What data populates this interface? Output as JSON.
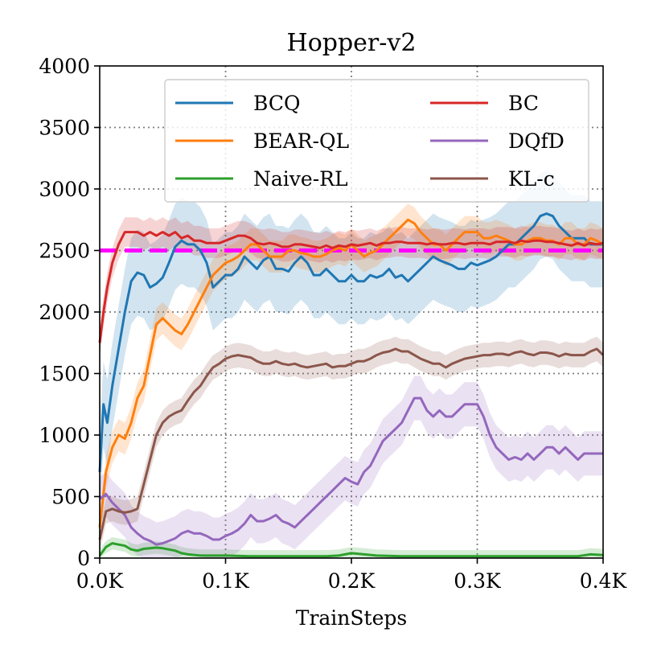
{
  "chart_data": {
    "type": "line",
    "title": "Hopper-v2",
    "xlabel": "TrainSteps",
    "ylabel": "",
    "xlim": [
      0,
      400
    ],
    "ylim": [
      0,
      4000
    ],
    "x_ticks": [
      0,
      100,
      200,
      300,
      400
    ],
    "x_tick_labels": [
      "0.0K",
      "0.1K",
      "0.2K",
      "0.3K",
      "0.4K"
    ],
    "y_ticks": [
      0,
      500,
      1000,
      1500,
      2000,
      2500,
      3000,
      3500,
      4000
    ],
    "y_tick_labels": [
      "0",
      "500",
      "1000",
      "1500",
      "2000",
      "2500",
      "3000",
      "3500",
      "4000"
    ],
    "grid": true,
    "legend_position": "top-right",
    "reference_line": {
      "y": 2500,
      "color": "#ff00ff",
      "style": "dashed"
    },
    "series": [
      {
        "name": "BCQ",
        "color": "#1f77b4",
        "x": [
          0,
          3,
          6,
          10,
          15,
          20,
          25,
          30,
          35,
          40,
          45,
          50,
          55,
          60,
          65,
          70,
          75,
          80,
          85,
          90,
          95,
          100,
          105,
          110,
          115,
          120,
          125,
          130,
          135,
          140,
          145,
          150,
          155,
          160,
          165,
          170,
          175,
          180,
          185,
          190,
          195,
          200,
          205,
          210,
          215,
          220,
          225,
          230,
          235,
          240,
          245,
          250,
          255,
          260,
          265,
          270,
          275,
          280,
          285,
          290,
          295,
          300,
          305,
          310,
          315,
          320,
          325,
          330,
          335,
          340,
          345,
          350,
          355,
          360,
          365,
          370,
          375,
          380,
          385,
          390,
          395,
          400
        ],
        "values": [
          700,
          1250,
          1100,
          1400,
          1700,
          2000,
          2250,
          2320,
          2300,
          2200,
          2230,
          2280,
          2400,
          2530,
          2580,
          2550,
          2550,
          2500,
          2400,
          2200,
          2250,
          2300,
          2300,
          2350,
          2450,
          2400,
          2350,
          2420,
          2450,
          2350,
          2350,
          2330,
          2400,
          2450,
          2400,
          2300,
          2300,
          2350,
          2300,
          2250,
          2250,
          2300,
          2250,
          2250,
          2300,
          2280,
          2300,
          2350,
          2280,
          2300,
          2250,
          2300,
          2350,
          2400,
          2450,
          2420,
          2400,
          2380,
          2350,
          2350,
          2400,
          2380,
          2400,
          2420,
          2450,
          2500,
          2550,
          2550,
          2600,
          2650,
          2700,
          2780,
          2800,
          2780,
          2700,
          2650,
          2600,
          2600,
          2600,
          2550,
          2550,
          2550
        ],
        "band": 350
      },
      {
        "name": "BEAR-QL",
        "color": "#ff7f0e",
        "x": [
          0,
          5,
          10,
          15,
          20,
          25,
          30,
          35,
          40,
          45,
          50,
          55,
          60,
          65,
          70,
          75,
          80,
          85,
          90,
          95,
          100,
          105,
          110,
          115,
          120,
          125,
          130,
          135,
          140,
          145,
          150,
          155,
          160,
          165,
          170,
          175,
          180,
          185,
          190,
          195,
          200,
          205,
          210,
          215,
          220,
          225,
          230,
          235,
          240,
          245,
          250,
          255,
          260,
          265,
          270,
          275,
          280,
          285,
          290,
          295,
          300,
          305,
          310,
          315,
          320,
          325,
          330,
          335,
          340,
          345,
          350,
          355,
          360,
          365,
          370,
          375,
          380,
          385,
          390,
          395,
          400
        ],
        "values": [
          250,
          700,
          900,
          1000,
          970,
          1100,
          1300,
          1400,
          1650,
          1900,
          1950,
          1900,
          1850,
          1820,
          1900,
          2000,
          2100,
          2200,
          2300,
          2350,
          2400,
          2420,
          2450,
          2500,
          2550,
          2550,
          2500,
          2450,
          2450,
          2450,
          2500,
          2500,
          2480,
          2470,
          2450,
          2450,
          2470,
          2500,
          2520,
          2500,
          2550,
          2500,
          2450,
          2480,
          2500,
          2550,
          2600,
          2650,
          2700,
          2750,
          2720,
          2650,
          2600,
          2550,
          2550,
          2500,
          2550,
          2600,
          2650,
          2650,
          2650,
          2600,
          2600,
          2620,
          2600,
          2580,
          2550,
          2550,
          2580,
          2600,
          2600,
          2580,
          2580,
          2550,
          2600,
          2600,
          2550,
          2550,
          2600,
          2580,
          2550
        ],
        "band": 130
      },
      {
        "name": "Naive-RL",
        "color": "#2ca02c",
        "x": [
          0,
          5,
          10,
          15,
          20,
          25,
          30,
          35,
          40,
          45,
          50,
          55,
          60,
          65,
          70,
          80,
          90,
          100,
          120,
          140,
          160,
          180,
          190,
          200,
          210,
          220,
          240,
          260,
          280,
          300,
          320,
          340,
          360,
          380,
          390,
          400
        ],
        "values": [
          20,
          90,
          120,
          110,
          100,
          70,
          60,
          75,
          80,
          85,
          80,
          70,
          60,
          40,
          30,
          20,
          20,
          20,
          15,
          15,
          15,
          15,
          20,
          40,
          30,
          20,
          15,
          15,
          15,
          15,
          15,
          15,
          15,
          15,
          30,
          25
        ],
        "band": 50
      },
      {
        "name": "BC",
        "color": "#d62728",
        "x": [
          0,
          3,
          6,
          10,
          15,
          20,
          25,
          30,
          35,
          40,
          45,
          50,
          55,
          60,
          65,
          70,
          75,
          80,
          85,
          90,
          95,
          100,
          105,
          110,
          115,
          120,
          125,
          130,
          135,
          140,
          145,
          150,
          155,
          160,
          165,
          170,
          175,
          180,
          185,
          190,
          195,
          200,
          205,
          210,
          215,
          220,
          225,
          230,
          235,
          240,
          245,
          250,
          255,
          260,
          265,
          270,
          275,
          280,
          285,
          290,
          295,
          300,
          305,
          310,
          315,
          320,
          325,
          330,
          335,
          340,
          345,
          350,
          355,
          360,
          365,
          370,
          375,
          380,
          385,
          390,
          395,
          400
        ],
        "values": [
          1750,
          2000,
          2200,
          2400,
          2550,
          2650,
          2650,
          2650,
          2620,
          2650,
          2620,
          2650,
          2620,
          2650,
          2600,
          2620,
          2580,
          2580,
          2560,
          2560,
          2560,
          2580,
          2600,
          2620,
          2620,
          2600,
          2560,
          2550,
          2560,
          2550,
          2530,
          2530,
          2550,
          2550,
          2540,
          2530,
          2520,
          2540,
          2520,
          2540,
          2530,
          2550,
          2540,
          2550,
          2560,
          2540,
          2560,
          2560,
          2570,
          2570,
          2560,
          2560,
          2560,
          2550,
          2560,
          2550,
          2550,
          2560,
          2560,
          2550,
          2560,
          2560,
          2560,
          2550,
          2570,
          2570,
          2570,
          2560,
          2580,
          2570,
          2580,
          2580,
          2570,
          2570,
          2560,
          2550,
          2540,
          2560,
          2540,
          2560,
          2550,
          2560
        ],
        "band": 120
      },
      {
        "name": "DQfD",
        "color": "#9467bd",
        "x": [
          0,
          5,
          10,
          15,
          20,
          25,
          30,
          35,
          40,
          45,
          50,
          55,
          60,
          65,
          70,
          75,
          80,
          85,
          90,
          95,
          100,
          105,
          110,
          115,
          120,
          125,
          130,
          135,
          140,
          145,
          150,
          155,
          160,
          165,
          170,
          175,
          180,
          185,
          190,
          195,
          200,
          205,
          210,
          215,
          220,
          225,
          230,
          235,
          240,
          245,
          250,
          255,
          260,
          265,
          270,
          275,
          280,
          285,
          290,
          295,
          300,
          305,
          310,
          315,
          320,
          325,
          330,
          335,
          340,
          345,
          350,
          355,
          360,
          365,
          370,
          375,
          380,
          385,
          390,
          395,
          400
        ],
        "values": [
          480,
          520,
          450,
          400,
          350,
          250,
          200,
          160,
          140,
          110,
          120,
          140,
          160,
          200,
          220,
          200,
          200,
          180,
          150,
          150,
          180,
          200,
          230,
          280,
          350,
          300,
          300,
          320,
          350,
          300,
          280,
          250,
          300,
          350,
          400,
          450,
          500,
          550,
          600,
          650,
          620,
          600,
          700,
          750,
          850,
          950,
          1000,
          1050,
          1100,
          1200,
          1300,
          1300,
          1200,
          1150,
          1200,
          1150,
          1150,
          1200,
          1250,
          1250,
          1250,
          1150,
          1000,
          900,
          850,
          800,
          820,
          800,
          850,
          800,
          850,
          900,
          900,
          850,
          900,
          850,
          800,
          850,
          850,
          850,
          850
        ],
        "band": 180
      },
      {
        "name": "KL-c",
        "color": "#8c564b",
        "x": [
          0,
          5,
          10,
          15,
          20,
          25,
          30,
          35,
          40,
          45,
          50,
          55,
          60,
          65,
          70,
          75,
          80,
          85,
          90,
          95,
          100,
          105,
          110,
          115,
          120,
          125,
          130,
          135,
          140,
          145,
          150,
          155,
          160,
          165,
          170,
          175,
          180,
          185,
          190,
          195,
          200,
          205,
          210,
          215,
          220,
          225,
          230,
          235,
          240,
          245,
          250,
          255,
          260,
          265,
          270,
          275,
          280,
          285,
          290,
          295,
          300,
          305,
          310,
          315,
          320,
          325,
          330,
          335,
          340,
          345,
          350,
          355,
          360,
          365,
          370,
          375,
          380,
          385,
          390,
          395,
          400
        ],
        "values": [
          150,
          380,
          400,
          380,
          370,
          380,
          400,
          600,
          800,
          1000,
          1100,
          1150,
          1180,
          1200,
          1280,
          1350,
          1400,
          1480,
          1550,
          1580,
          1620,
          1640,
          1650,
          1640,
          1630,
          1600,
          1580,
          1580,
          1600,
          1580,
          1570,
          1580,
          1560,
          1550,
          1560,
          1570,
          1580,
          1550,
          1560,
          1560,
          1580,
          1600,
          1600,
          1620,
          1650,
          1670,
          1680,
          1700,
          1680,
          1680,
          1650,
          1620,
          1600,
          1580,
          1580,
          1550,
          1580,
          1600,
          1620,
          1630,
          1640,
          1650,
          1650,
          1660,
          1660,
          1650,
          1670,
          1680,
          1660,
          1650,
          1670,
          1670,
          1660,
          1640,
          1660,
          1650,
          1650,
          1650,
          1680,
          1700,
          1650
        ],
        "band": 100
      }
    ]
  }
}
